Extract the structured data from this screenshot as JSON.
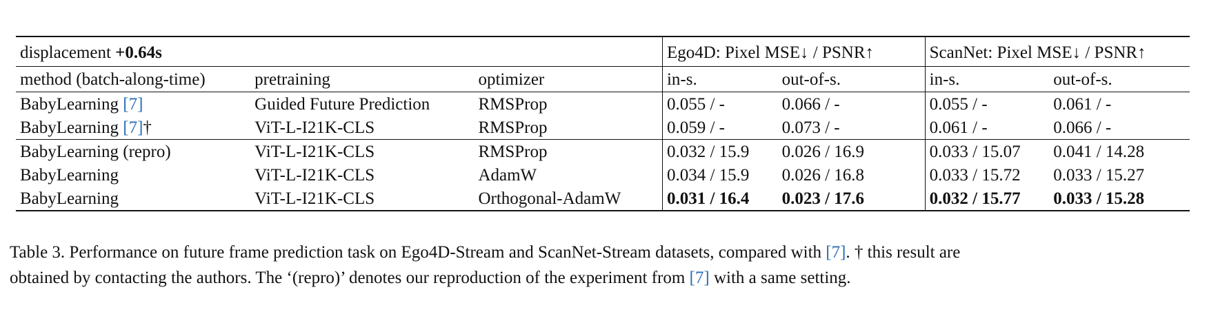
{
  "table": {
    "header": {
      "displacement_label": "displacement",
      "displacement_value": "+0.64s",
      "ego4d_group": "Ego4D: Pixel MSE↓ / PSNR↑",
      "scannet_group": "ScanNet: Pixel MSE↓ / PSNR↑"
    },
    "subheader": {
      "method": "method (batch-along-time)",
      "pretraining": "pretraining",
      "optimizer": "optimizer",
      "ego_in": "in-s.",
      "ego_out": "out-of-s.",
      "scan_in": "in-s.",
      "scan_out": "out-of-s."
    },
    "rows": [
      {
        "method": "BabyLearning",
        "cite": "[7]",
        "suffix": "",
        "pretraining": "Guided Future Prediction",
        "optimizer": "RMSProp",
        "ego_in": "0.055 / -",
        "ego_out": "0.066 / -",
        "scan_in": "0.055 / -",
        "scan_out": "0.061 / -"
      },
      {
        "method": "BabyLearning",
        "cite": "[7]",
        "suffix": "†",
        "pretraining": "ViT-L-I21K-CLS",
        "optimizer": "RMSProp",
        "ego_in": "0.059 / -",
        "ego_out": "0.073 / -",
        "scan_in": "0.061 / -",
        "scan_out": "0.066 / -"
      },
      {
        "method": "BabyLearning (repro)",
        "pretraining": "ViT-L-I21K-CLS",
        "optimizer": "RMSProp",
        "ego_in": "0.032 / 15.9",
        "ego_out": "0.026 / 16.9",
        "scan_in": "0.033 / 15.07",
        "scan_out": "0.041 / 14.28"
      },
      {
        "method": "BabyLearning",
        "pretraining": "ViT-L-I21K-CLS",
        "optimizer": "AdamW",
        "ego_in": "0.034 / 15.9",
        "ego_out": "0.026 / 16.8",
        "scan_in": "0.033 / 15.72",
        "scan_out": "0.033 / 15.27"
      },
      {
        "method": "BabyLearning",
        "pretraining": "ViT-L-I21K-CLS",
        "optimizer": "Orthogonal-AdamW",
        "ego_in": "0.031 / 16.4",
        "ego_out": "0.023 / 17.6",
        "scan_in": "0.032 / 15.77",
        "scan_out": "0.033 / 15.28"
      }
    ]
  },
  "caption": {
    "line1_a": "Table 3. Performance on future frame prediction task on Ego4D-Stream and ScanNet-Stream datasets, compared with ",
    "line1_cite": "[7]",
    "line1_b": ". † this result are",
    "line2_a": "obtained by contacting the authors. The ‘(repro)’ denotes our reproduction of the experiment from ",
    "line2_cite": "[7]",
    "line2_b": " with a same setting."
  },
  "colors": {
    "citation": "#2a6db5",
    "text": "#111111",
    "rule": "#111111"
  }
}
